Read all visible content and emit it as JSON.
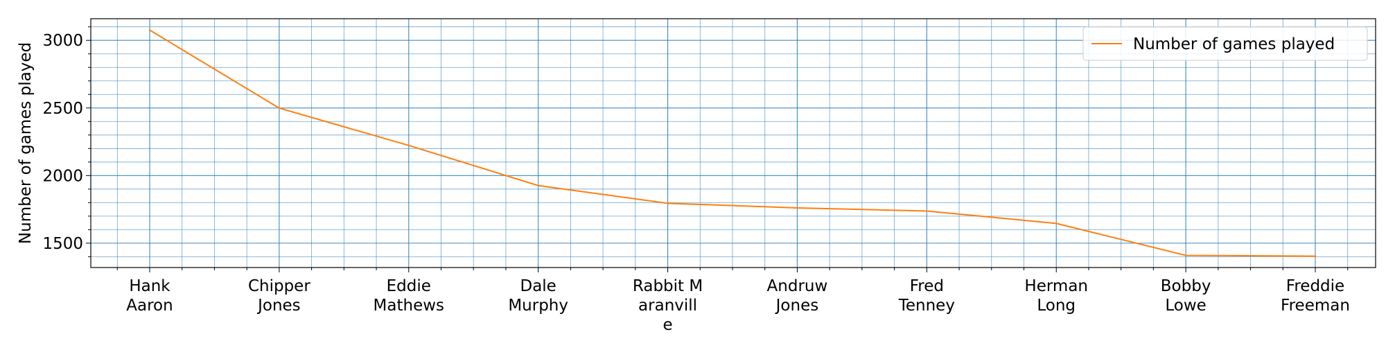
{
  "chart_data": {
    "type": "line",
    "title": "",
    "xlabel": "",
    "ylabel": "Number of games played",
    "categories": [
      [
        "Hank",
        "Aaron"
      ],
      [
        "Chipper",
        "Jones"
      ],
      [
        "Eddie",
        "Mathews"
      ],
      [
        "Dale",
        "Murphy"
      ],
      [
        "Rabbit M",
        "aranvill",
        "e"
      ],
      [
        "Andruw",
        "Jones"
      ],
      [
        "Fred",
        "Tenney"
      ],
      [
        "Herman",
        "Long"
      ],
      [
        "Bobby",
        "Lowe"
      ],
      [
        "Freddie",
        "Freeman"
      ]
    ],
    "series": [
      {
        "name": "Number of games played",
        "values": [
          3076,
          2499,
          2223,
          1926,
          1795,
          1761,
          1738,
          1646,
          1410,
          1404
        ],
        "color": "#ff7f0e"
      }
    ],
    "yticks": [
      1500,
      2000,
      2500,
      3000
    ],
    "ylim": [
      1320,
      3160
    ],
    "grid": true,
    "grid_color": "#1f77b4",
    "legend_position": "top-right"
  }
}
